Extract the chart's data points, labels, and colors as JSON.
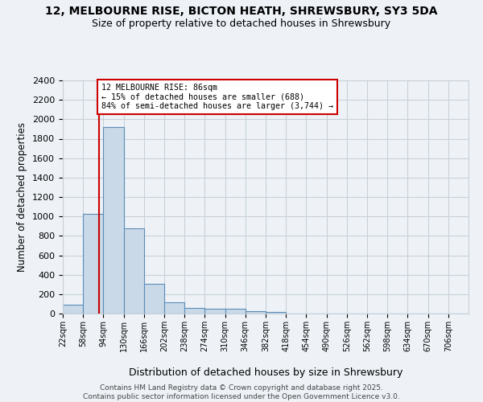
{
  "title_line1": "12, MELBOURNE RISE, BICTON HEATH, SHREWSBURY, SY3 5DA",
  "title_line2": "Size of property relative to detached houses in Shrewsbury",
  "xlabel": "Distribution of detached houses by size in Shrewsbury",
  "ylabel": "Number of detached properties",
  "annotation_title": "12 MELBOURNE RISE: 86sqm",
  "annotation_line2": "← 15% of detached houses are smaller (688)",
  "annotation_line3": "84% of semi-detached houses are larger (3,744) →",
  "footer_line1": "Contains HM Land Registry data © Crown copyright and database right 2025.",
  "footer_line2": "Contains public sector information licensed under the Open Government Licence v3.0.",
  "property_size_sqm": 86,
  "bin_edges": [
    22,
    58,
    94,
    130,
    166,
    202,
    238,
    274,
    310,
    346,
    382,
    418,
    454,
    490,
    526,
    562,
    598,
    634,
    670,
    706,
    742
  ],
  "bar_heights": [
    95,
    1030,
    1920,
    880,
    310,
    120,
    58,
    48,
    48,
    25,
    15,
    0,
    0,
    0,
    0,
    0,
    0,
    0,
    0,
    0
  ],
  "bar_color": "#c9d9e8",
  "bar_edge_color": "#5b8db8",
  "vline_color": "#cc0000",
  "vline_x": 86,
  "annotation_box_color": "#cc0000",
  "annotation_bg_color": "#ffffff",
  "grid_color": "#c8d0d8",
  "background_color": "#eef2f7",
  "ylim": [
    0,
    2400
  ],
  "yticks": [
    0,
    200,
    400,
    600,
    800,
    1000,
    1200,
    1400,
    1600,
    1800,
    2000,
    2200,
    2400
  ]
}
